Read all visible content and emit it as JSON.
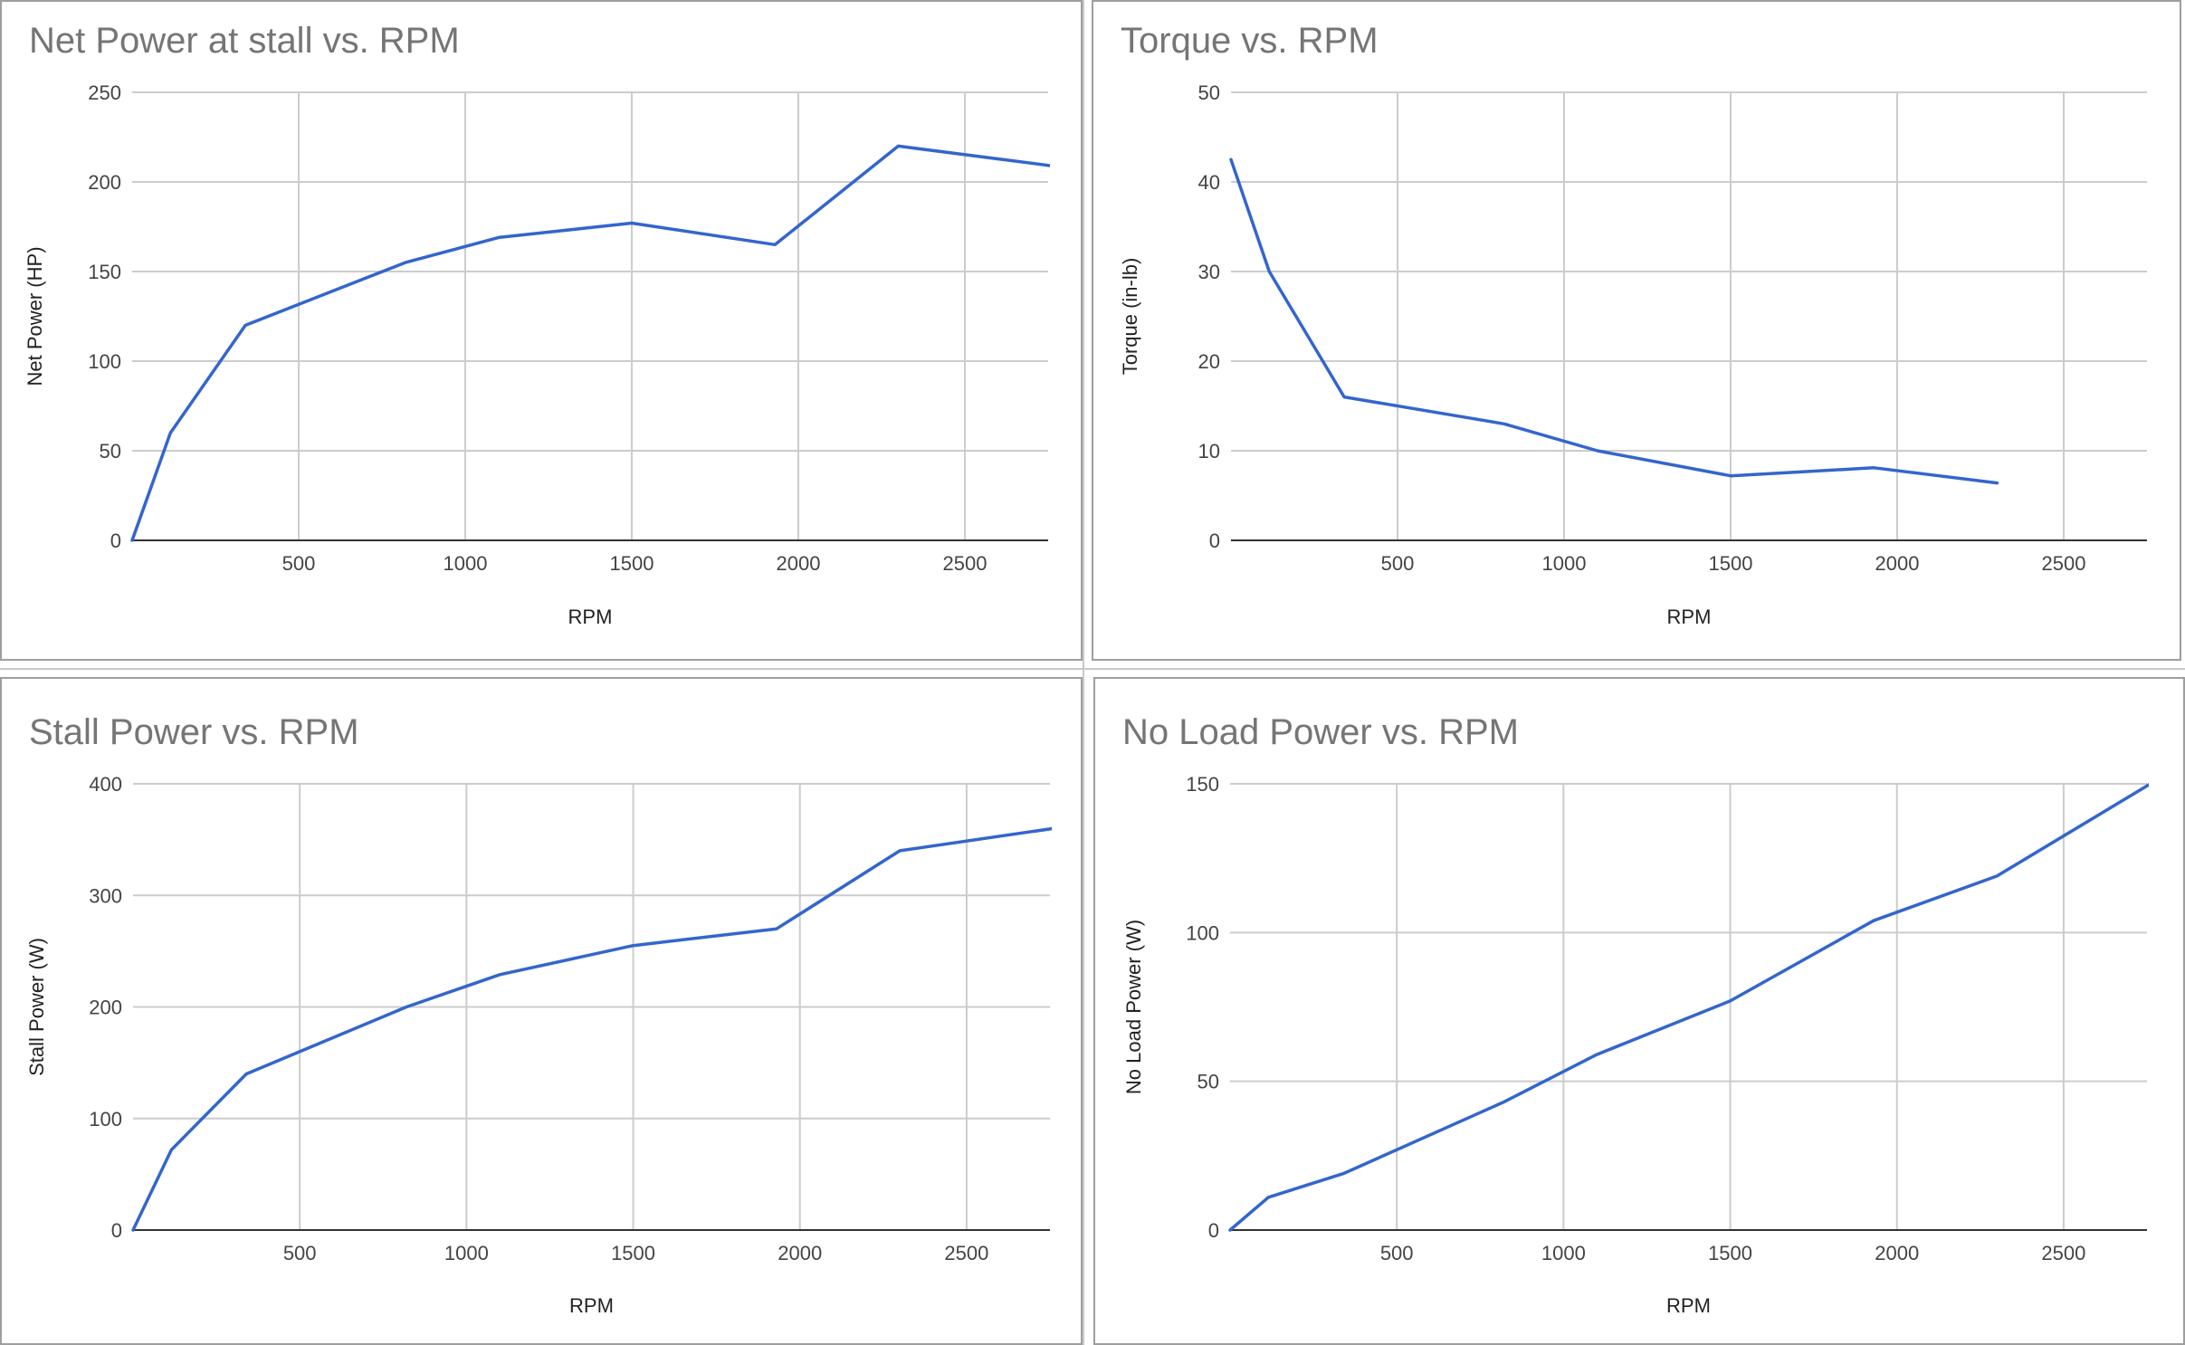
{
  "chart_data": [
    {
      "type": "line",
      "title": "Net Power at stall vs. RPM",
      "xlabel": "RPM",
      "ylabel": "Net Power (HP)",
      "xlim": [
        0,
        2750
      ],
      "ylim": [
        0,
        250
      ],
      "x_ticks": [
        500,
        1000,
        1500,
        2000,
        2500
      ],
      "y_ticks": [
        0,
        50,
        100,
        150,
        200,
        250
      ],
      "grid": true,
      "series": [
        {
          "color": "#3366cc",
          "points": [
            [
              0,
              0
            ],
            [
              115,
              60
            ],
            [
              340,
              120
            ],
            [
              820,
              155
            ],
            [
              1100,
              169
            ],
            [
              1500,
              177
            ],
            [
              1930,
              165
            ],
            [
              2300,
              220
            ],
            [
              2760,
              209
            ]
          ]
        }
      ]
    },
    {
      "type": "line",
      "title": "Torque vs. RPM",
      "xlabel": "RPM",
      "ylabel": "Torque (in-lb)",
      "xlim": [
        0,
        2750
      ],
      "ylim": [
        0,
        50
      ],
      "x_ticks": [
        500,
        1000,
        1500,
        2000,
        2500
      ],
      "y_ticks": [
        0,
        10,
        20,
        30,
        40,
        50
      ],
      "grid": true,
      "series": [
        {
          "color": "#3366cc",
          "points": [
            [
              0,
              42.5
            ],
            [
              115,
              30
            ],
            [
              340,
              16
            ],
            [
              820,
              13
            ],
            [
              1100,
              10
            ],
            [
              1500,
              7.2
            ],
            [
              1930,
              8.1
            ],
            [
              2300,
              6.4
            ]
          ]
        }
      ]
    },
    {
      "type": "line",
      "title": "Stall Power vs. RPM",
      "xlabel": "RPM",
      "ylabel": "Stall Power (W)",
      "xlim": [
        0,
        2750
      ],
      "ylim": [
        0,
        400
      ],
      "x_ticks": [
        500,
        1000,
        1500,
        2000,
        2500
      ],
      "y_ticks": [
        0,
        100,
        200,
        300,
        400
      ],
      "grid": true,
      "series": [
        {
          "color": "#3366cc",
          "points": [
            [
              0,
              0
            ],
            [
              115,
              72
            ],
            [
              340,
              140
            ],
            [
              820,
              200
            ],
            [
              1100,
              229
            ],
            [
              1500,
              255
            ],
            [
              1930,
              270
            ],
            [
              2300,
              340
            ],
            [
              2760,
              360
            ]
          ]
        }
      ]
    },
    {
      "type": "line",
      "title": "No Load Power vs. RPM",
      "xlabel": "RPM",
      "ylabel": "No Load Power (W)",
      "xlim": [
        0,
        2750
      ],
      "ylim": [
        0,
        150
      ],
      "x_ticks": [
        500,
        1000,
        1500,
        2000,
        2500
      ],
      "y_ticks": [
        0,
        50,
        100,
        150
      ],
      "grid": true,
      "series": [
        {
          "color": "#3366cc",
          "points": [
            [
              0,
              0
            ],
            [
              115,
              11
            ],
            [
              340,
              19
            ],
            [
              820,
              43
            ],
            [
              1100,
              59
            ],
            [
              1500,
              77
            ],
            [
              1930,
              104
            ],
            [
              2300,
              119
            ],
            [
              2760,
              150
            ]
          ]
        }
      ]
    }
  ]
}
